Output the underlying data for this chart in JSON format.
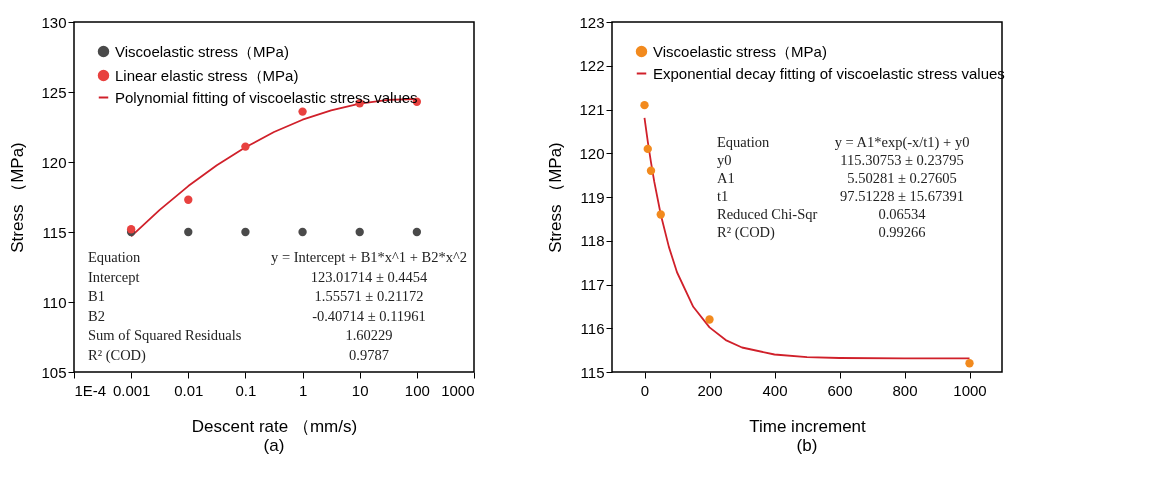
{
  "chart_data": [
    {
      "type": "scatter",
      "title": "(a)",
      "xlabel": "Descent rate （mm/s)",
      "ylabel": "Stress （MPa)",
      "log": "x",
      "legend": "top left",
      "xlim": [
        0.0001,
        1000
      ],
      "xticks": [
        {
          "value": 0.0001,
          "label": "1E-4"
        },
        0.001,
        0.01,
        0.1,
        1,
        10,
        100,
        1000
      ],
      "ylim": [
        105,
        130
      ],
      "yticks": [
        105,
        110,
        115,
        120,
        125,
        130
      ],
      "x": [
        0.001,
        0.01,
        0.1,
        1,
        10,
        100
      ],
      "series": [
        {
          "name": "Viscoelastic stress（MPa)",
          "color": "#4a4a4a",
          "marker": "circle",
          "values": [
            115,
            115,
            115,
            115,
            115,
            115
          ]
        },
        {
          "name": "Linear elastic stress（MPa)",
          "color": "#e8413f",
          "marker": "circle",
          "values": [
            115.2,
            117.3,
            121.1,
            123.6,
            124.2,
            124.3
          ]
        },
        {
          "name": "Polynomial fitting of viscoelastic stress values",
          "type": "line",
          "color": "#d0202a",
          "x": [
            0.001,
            0.00316,
            0.01,
            0.0316,
            0.1,
            0.316,
            1,
            3.16,
            10,
            31.6,
            100
          ],
          "values": [
            114.69,
            116.58,
            118.28,
            119.77,
            121.05,
            122.14,
            123.02,
            123.69,
            124.17,
            124.44,
            124.5
          ]
        }
      ],
      "annotations": [
        "Equation",
        "y = Intercept + B1*x^1 + B2*x^2",
        "Intercept",
        "123.01714 ± 0.4454",
        "B1",
        "1.55571 ± 0.21172",
        "B2",
        "-0.40714 ± 0.11961",
        "Sum of Squared Residuals",
        "1.60229",
        "R² (COD)",
        "0.9787"
      ]
    },
    {
      "type": "scatter",
      "title": "(b)",
      "xlabel": "Time increment",
      "ylabel": "Stress （MPa)",
      "legend": "top left",
      "xlim": [
        -100,
        1100
      ],
      "xticks": [
        0,
        200,
        400,
        600,
        800,
        1000
      ],
      "ylim": [
        115,
        123
      ],
      "yticks": [
        115,
        116,
        117,
        118,
        119,
        120,
        121,
        122,
        123
      ],
      "x": [
        0,
        10,
        20,
        50,
        200,
        1000
      ],
      "series": [
        {
          "name": "Viscoelastic stress（MPa)",
          "color": "#f28a1e",
          "marker": "circle",
          "values": [
            121.1,
            120.1,
            119.6,
            118.6,
            116.2,
            115.2
          ]
        },
        {
          "name": "Exponential decay fitting of viscoelastic stress values",
          "type": "line",
          "color": "#d0202a",
          "x": [
            0,
            10,
            20,
            30,
            50,
            75,
            100,
            150,
            200,
            250,
            300,
            400,
            500,
            600,
            800,
            1000
          ],
          "values": [
            120.81,
            120.27,
            119.79,
            119.35,
            118.6,
            117.86,
            117.28,
            116.49,
            116.02,
            115.73,
            115.56,
            115.4,
            115.34,
            115.32,
            115.31,
            115.31
          ]
        }
      ],
      "annotations": [
        "Equation",
        "y = A1*exp(-x/t1) + y0",
        "y0",
        "115.30753 ± 0.23795",
        "A1",
        "5.50281 ± 0.27605",
        "t1",
        "97.51228 ± 15.67391",
        "Reduced Chi-Sqr",
        "0.06534",
        "R² (COD)",
        "0.99266"
      ]
    }
  ]
}
